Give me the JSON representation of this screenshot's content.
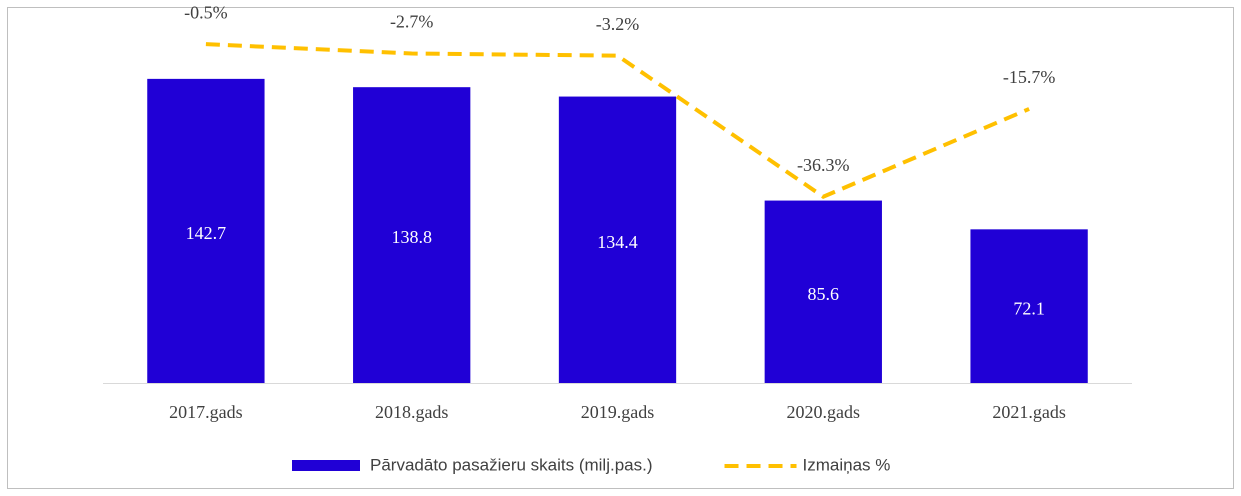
{
  "chart_data": {
    "type": "bar",
    "categories": [
      "2017.gads",
      "2018.gads",
      "2019.gads",
      "2020.gads",
      "2021.gads"
    ],
    "series": [
      {
        "name": "Pārvadāto pasažieru skaits (milj.pas.)",
        "type": "bar",
        "color": "#2000d6",
        "values": [
          142.7,
          138.8,
          134.4,
          85.6,
          72.1
        ]
      },
      {
        "name": "Izmaiņas %",
        "type": "line",
        "axis": "y2",
        "color": "#ffc000",
        "values": [
          -0.5,
          -2.7,
          -3.2,
          -36.3,
          -15.7
        ],
        "value_labels": [
          "-0.5%",
          "-2.7%",
          "-3.2%",
          "-36.3%",
          "-15.7%"
        ]
      }
    ],
    "ylim": [
      0,
      160
    ],
    "y2lim": [
      -80,
      0
    ],
    "legend": "bottom"
  }
}
